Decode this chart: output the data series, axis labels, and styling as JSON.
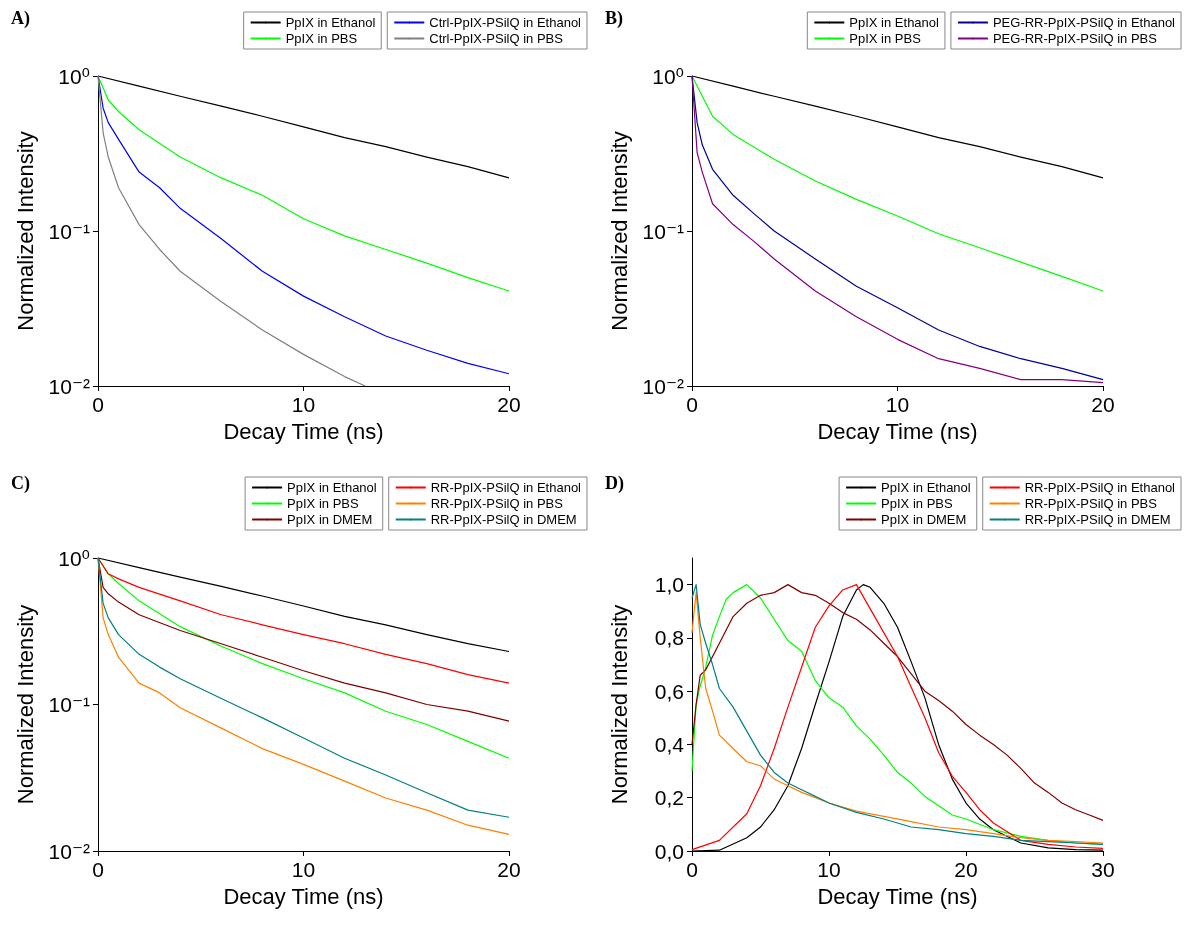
{
  "chart_data": [
    {
      "type": "line",
      "title": "A)",
      "xlabel": "Decay Time (ns)",
      "ylabel": "Normalized Intensity",
      "log": "y",
      "grid": false,
      "legend": "top right",
      "xlim": [
        0,
        20
      ],
      "xticks": [
        0,
        10,
        20
      ],
      "ylim": [
        0.01,
        1
      ],
      "yticks": [
        {
          "value": 0.01,
          "label": "10⁻²"
        },
        {
          "value": 0.1,
          "label": "10⁻¹"
        },
        {
          "value": 1,
          "label": "10⁰"
        }
      ],
      "series": [
        {
          "name": "PpIX in Ethanol",
          "color": "#000000",
          "x": [
            0,
            2,
            4,
            6,
            8,
            10,
            12,
            14,
            16,
            18,
            20
          ],
          "values": [
            1,
            0.86,
            0.74,
            0.64,
            0.55,
            0.47,
            0.4,
            0.35,
            0.3,
            0.26,
            0.22
          ]
        },
        {
          "name": "PpIX in PBS",
          "color": "#00ff00",
          "x": [
            0,
            0.5,
            1,
            2,
            4,
            6,
            8,
            10,
            12,
            14,
            16,
            18,
            20
          ],
          "values": [
            1,
            0.7,
            0.59,
            0.45,
            0.3,
            0.22,
            0.17,
            0.12,
            0.093,
            0.076,
            0.062,
            0.05,
            0.041
          ]
        },
        {
          "name": "Ctrl-PpIX-PSilQ in Ethanol",
          "color": "#0000ff",
          "x": [
            0,
            0.25,
            0.5,
            1,
            2,
            3,
            4,
            6,
            8,
            10,
            12,
            14,
            16,
            18,
            20
          ],
          "values": [
            1,
            0.62,
            0.5,
            0.39,
            0.24,
            0.19,
            0.14,
            0.089,
            0.055,
            0.038,
            0.028,
            0.021,
            0.017,
            0.014,
            0.012
          ]
        },
        {
          "name": "Ctrl-PpIX-PSilQ in PBS",
          "color": "#808080",
          "x": [
            0,
            0.25,
            0.5,
            1,
            2,
            3,
            4,
            6,
            8,
            10,
            12,
            13
          ],
          "values": [
            1,
            0.43,
            0.3,
            0.19,
            0.11,
            0.076,
            0.055,
            0.035,
            0.023,
            0.016,
            0.0115,
            0.01
          ]
        }
      ]
    },
    {
      "type": "line",
      "title": "B)",
      "xlabel": "Decay Time (ns)",
      "ylabel": "Normalized Intensity",
      "log": "y",
      "grid": false,
      "legend": "top right",
      "xlim": [
        0,
        20
      ],
      "xticks": [
        0,
        10,
        20
      ],
      "ylim": [
        0.01,
        1
      ],
      "yticks": [
        {
          "value": 0.01,
          "label": "10⁻²"
        },
        {
          "value": 0.1,
          "label": "10⁻¹"
        },
        {
          "value": 1,
          "label": "10⁰"
        }
      ],
      "series": [
        {
          "name": "PpIX in Ethanol",
          "color": "#000000",
          "x": [
            0,
            2,
            4,
            6,
            8,
            10,
            12,
            14,
            16,
            18,
            20
          ],
          "values": [
            1,
            0.86,
            0.74,
            0.64,
            0.55,
            0.47,
            0.4,
            0.35,
            0.3,
            0.26,
            0.22
          ]
        },
        {
          "name": "PpIX in PBS",
          "color": "#00ff00",
          "x": [
            0,
            1,
            2,
            4,
            6,
            8,
            10,
            12,
            14,
            16,
            18,
            20
          ],
          "values": [
            1,
            0.55,
            0.42,
            0.29,
            0.21,
            0.16,
            0.125,
            0.096,
            0.078,
            0.063,
            0.051,
            0.041
          ]
        },
        {
          "name": "PEG-RR-PpIX-PSilQ in Ethanol",
          "color": "#000099",
          "x": [
            0,
            0.25,
            0.5,
            1,
            2,
            3,
            4,
            6,
            8,
            10,
            12,
            14,
            16,
            18,
            20
          ],
          "values": [
            1,
            0.5,
            0.36,
            0.25,
            0.17,
            0.13,
            0.1,
            0.066,
            0.044,
            0.032,
            0.023,
            0.018,
            0.015,
            0.013,
            0.011
          ]
        },
        {
          "name": "PEG-RR-PpIX-PSilQ in PBS",
          "color": "#800080",
          "x": [
            0,
            0.25,
            0.5,
            1,
            2,
            3,
            4,
            6,
            8,
            10,
            12,
            14,
            16,
            18,
            20
          ],
          "values": [
            1,
            0.32,
            0.24,
            0.15,
            0.11,
            0.086,
            0.066,
            0.041,
            0.028,
            0.02,
            0.015,
            0.013,
            0.011,
            0.011,
            0.0105
          ]
        }
      ]
    },
    {
      "type": "line",
      "title": "C)",
      "xlabel": "Decay Time (ns)",
      "ylabel": "Normalized Intensity",
      "log": "y",
      "grid": false,
      "legend": "top right",
      "xlim": [
        0,
        20
      ],
      "xticks": [
        0,
        10,
        20
      ],
      "ylim": [
        0.01,
        1
      ],
      "yticks": [
        {
          "value": 0.01,
          "label": "10⁻²"
        },
        {
          "value": 0.1,
          "label": "10⁻¹"
        },
        {
          "value": 1,
          "label": "10⁰"
        }
      ],
      "series": [
        {
          "name": "PpIX in Ethanol",
          "color": "#000000",
          "x": [
            0,
            2,
            4,
            6,
            8,
            10,
            12,
            14,
            16,
            18,
            20
          ],
          "values": [
            1,
            0.86,
            0.74,
            0.64,
            0.55,
            0.47,
            0.4,
            0.35,
            0.3,
            0.26,
            0.23
          ]
        },
        {
          "name": "PpIX in PBS",
          "color": "#00ff00",
          "x": [
            0,
            0.5,
            1,
            2,
            4,
            6,
            8,
            10,
            12,
            14,
            16,
            18,
            20
          ],
          "values": [
            1,
            0.78,
            0.67,
            0.51,
            0.34,
            0.25,
            0.19,
            0.15,
            0.12,
            0.09,
            0.073,
            0.056,
            0.043
          ]
        },
        {
          "name": "PpIX in DMEM",
          "color": "#800000",
          "x": [
            0,
            0.25,
            0.5,
            1,
            2,
            4,
            6,
            8,
            10,
            12,
            14,
            16,
            18,
            20
          ],
          "values": [
            1,
            0.63,
            0.57,
            0.5,
            0.41,
            0.32,
            0.26,
            0.21,
            0.17,
            0.14,
            0.12,
            0.1,
            0.09,
            0.077
          ]
        },
        {
          "name": "RR-PpIX-PSilQ in Ethanol",
          "color": "#ff0000",
          "x": [
            0,
            0.5,
            1,
            2,
            4,
            6,
            8,
            10,
            12,
            14,
            16,
            18,
            20
          ],
          "values": [
            1,
            0.78,
            0.72,
            0.63,
            0.51,
            0.41,
            0.35,
            0.3,
            0.26,
            0.22,
            0.19,
            0.16,
            0.14
          ]
        },
        {
          "name": "RR-PpIX-PSilQ in PBS",
          "color": "#ff8000",
          "x": [
            0,
            0.25,
            0.5,
            1,
            2,
            3,
            4,
            6,
            8,
            10,
            12,
            14,
            16,
            18,
            20
          ],
          "values": [
            1,
            0.39,
            0.3,
            0.21,
            0.14,
            0.12,
            0.095,
            0.069,
            0.05,
            0.039,
            0.03,
            0.023,
            0.019,
            0.015,
            0.013
          ]
        },
        {
          "name": "RR-PpIX-PSilQ in DMEM",
          "color": "#008080",
          "x": [
            0,
            0.25,
            0.5,
            1,
            2,
            3,
            4,
            6,
            8,
            10,
            12,
            14,
            16,
            18,
            20
          ],
          "values": [
            1,
            0.49,
            0.39,
            0.3,
            0.22,
            0.18,
            0.15,
            0.11,
            0.081,
            0.059,
            0.043,
            0.033,
            0.025,
            0.019,
            0.017
          ]
        }
      ]
    },
    {
      "type": "line",
      "title": "D)",
      "xlabel": "Decay Time (ns)",
      "ylabel": "Normalized Intensity",
      "grid": false,
      "legend": "top right",
      "xlim": [
        0,
        30
      ],
      "xticks": [
        0,
        10,
        20,
        30
      ],
      "ylim": [
        0,
        1.1
      ],
      "yticks": [
        {
          "value": 0,
          "label": "0,0"
        },
        {
          "value": 0.2,
          "label": "0,2"
        },
        {
          "value": 0.4,
          "label": "0,4"
        },
        {
          "value": 0.6,
          "label": "0,6"
        },
        {
          "value": 0.8,
          "label": "0,8"
        },
        {
          "value": 1,
          "label": "1,0"
        }
      ],
      "series": [
        {
          "name": "PpIX in Ethanol",
          "color": "#000000",
          "x": [
            0,
            2,
            4,
            5,
            6,
            7,
            8,
            9,
            10,
            11,
            12,
            12.5,
            13,
            14,
            15,
            16,
            17,
            18,
            19,
            20,
            21,
            22,
            24,
            26,
            28,
            30
          ],
          "values": [
            0,
            0.003,
            0.05,
            0.09,
            0.155,
            0.245,
            0.385,
            0.55,
            0.71,
            0.88,
            0.98,
            1,
            0.99,
            0.93,
            0.84,
            0.71,
            0.575,
            0.4,
            0.27,
            0.18,
            0.12,
            0.08,
            0.03,
            0.012,
            0.005,
            0.003
          ]
        },
        {
          "name": "PpIX in PBS",
          "color": "#00ff00",
          "x": [
            0,
            0.3,
            0.55,
            1,
            1.5,
            2,
            2.5,
            3,
            4,
            5,
            6,
            7,
            8,
            9,
            10,
            11,
            12,
            13,
            14,
            15,
            16,
            17,
            18,
            19,
            20,
            22,
            24,
            26,
            28,
            30
          ],
          "values": [
            0.3,
            0.55,
            0.61,
            0.69,
            0.81,
            0.88,
            0.945,
            0.97,
            1,
            0.95,
            0.87,
            0.79,
            0.75,
            0.64,
            0.575,
            0.54,
            0.47,
            0.42,
            0.36,
            0.295,
            0.255,
            0.205,
            0.17,
            0.135,
            0.12,
            0.08,
            0.055,
            0.04,
            0.03,
            0.025
          ]
        },
        {
          "name": "PpIX in DMEM",
          "color": "#800000",
          "x": [
            0,
            0.3,
            0.6,
            1,
            2,
            3,
            4,
            5,
            6,
            7,
            8,
            9,
            10,
            11,
            12,
            13,
            14,
            15,
            16,
            17,
            18,
            19,
            20,
            21,
            22,
            23,
            24,
            25,
            26,
            27,
            28,
            29,
            30
          ],
          "values": [
            0.4,
            0.55,
            0.66,
            0.68,
            0.78,
            0.88,
            0.93,
            0.96,
            0.97,
            1,
            0.97,
            0.96,
            0.93,
            0.895,
            0.87,
            0.83,
            0.78,
            0.73,
            0.665,
            0.6,
            0.565,
            0.525,
            0.475,
            0.435,
            0.4,
            0.36,
            0.31,
            0.255,
            0.22,
            0.18,
            0.155,
            0.135,
            0.115
          ]
        },
        {
          "name": "RR-PpIX-PSilQ in Ethanol",
          "color": "#ff0000",
          "x": [
            0,
            2,
            4,
            5,
            6,
            7,
            8,
            9,
            10,
            11,
            12,
            13,
            14,
            15,
            16,
            17,
            18,
            19,
            20,
            21,
            22,
            24,
            26,
            28,
            30
          ],
          "values": [
            0.005,
            0.04,
            0.14,
            0.245,
            0.385,
            0.54,
            0.69,
            0.84,
            0.92,
            0.98,
            1,
            0.91,
            0.82,
            0.73,
            0.615,
            0.5,
            0.37,
            0.28,
            0.22,
            0.155,
            0.105,
            0.04,
            0.025,
            0.015,
            0.01
          ]
        },
        {
          "name": "RR-PpIX-PSilQ in PBS",
          "color": "#ff8000",
          "x": [
            0,
            0.3,
            0.6,
            1,
            1.5,
            2,
            3,
            4,
            5,
            6,
            7,
            8,
            10,
            12,
            14,
            16,
            18,
            20,
            22,
            24,
            26,
            28,
            30
          ],
          "values": [
            0.82,
            0.97,
            0.8,
            0.61,
            0.525,
            0.435,
            0.385,
            0.335,
            0.32,
            0.27,
            0.245,
            0.22,
            0.18,
            0.15,
            0.13,
            0.11,
            0.09,
            0.08,
            0.065,
            0.05,
            0.04,
            0.035,
            0.03
          ]
        },
        {
          "name": "RR-PpIX-PSilQ in DMEM",
          "color": "#008080",
          "x": [
            0,
            0.3,
            0.6,
            1,
            1.5,
            2,
            3,
            4,
            5,
            6,
            7,
            8,
            9,
            10,
            12,
            14,
            16,
            18,
            20,
            22,
            24,
            26,
            28,
            30
          ],
          "values": [
            0.95,
            1,
            0.85,
            0.78,
            0.7,
            0.61,
            0.54,
            0.45,
            0.36,
            0.295,
            0.255,
            0.23,
            0.205,
            0.18,
            0.145,
            0.12,
            0.09,
            0.08,
            0.065,
            0.055,
            0.04,
            0.035,
            0.03,
            0.025
          ]
        }
      ]
    }
  ]
}
